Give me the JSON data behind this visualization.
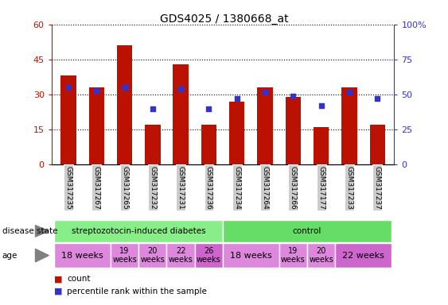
{
  "title": "GDS4025 / 1380668_at",
  "samples": [
    "GSM317235",
    "GSM317267",
    "GSM317265",
    "GSM317232",
    "GSM317231",
    "GSM317236",
    "GSM317234",
    "GSM317264",
    "GSM317266",
    "GSM317177",
    "GSM317233",
    "GSM317237"
  ],
  "counts": [
    38,
    33,
    51,
    17,
    43,
    17,
    27,
    33,
    29,
    16,
    33,
    17
  ],
  "percentiles": [
    55,
    53,
    55,
    40,
    54,
    40,
    47,
    52,
    49,
    42,
    52,
    47
  ],
  "ylim_left": [
    0,
    60
  ],
  "ylim_right": [
    0,
    100
  ],
  "yticks_left": [
    0,
    15,
    30,
    45,
    60
  ],
  "yticks_right": [
    0,
    25,
    50,
    75,
    100
  ],
  "bar_color": "#bb1100",
  "dot_color": "#3333cc",
  "disease_state_groups": [
    {
      "label": "streptozotocin-induced diabetes",
      "start": 0,
      "end": 6,
      "color": "#88ee88"
    },
    {
      "label": "control",
      "start": 6,
      "end": 12,
      "color": "#66dd66"
    }
  ],
  "age_groups": [
    {
      "label": "18 weeks",
      "start": 0,
      "end": 2,
      "color": "#dd88dd",
      "fontsize": 8
    },
    {
      "label": "19\nweeks",
      "start": 2,
      "end": 3,
      "color": "#dd88dd",
      "fontsize": 7
    },
    {
      "label": "20\nweeks",
      "start": 3,
      "end": 4,
      "color": "#dd88dd",
      "fontsize": 7
    },
    {
      "label": "22\nweeks",
      "start": 4,
      "end": 5,
      "color": "#dd88dd",
      "fontsize": 7
    },
    {
      "label": "26\nweeks",
      "start": 5,
      "end": 6,
      "color": "#cc66cc",
      "fontsize": 7
    },
    {
      "label": "18 weeks",
      "start": 6,
      "end": 8,
      "color": "#dd88dd",
      "fontsize": 8
    },
    {
      "label": "19\nweeks",
      "start": 8,
      "end": 9,
      "color": "#dd88dd",
      "fontsize": 7
    },
    {
      "label": "20\nweeks",
      "start": 9,
      "end": 10,
      "color": "#dd88dd",
      "fontsize": 7
    },
    {
      "label": "22 weeks",
      "start": 10,
      "end": 12,
      "color": "#cc66cc",
      "fontsize": 8
    }
  ],
  "xticklabel_bg": "#cccccc",
  "legend_count_color": "#bb1100",
  "legend_dot_color": "#3333cc"
}
